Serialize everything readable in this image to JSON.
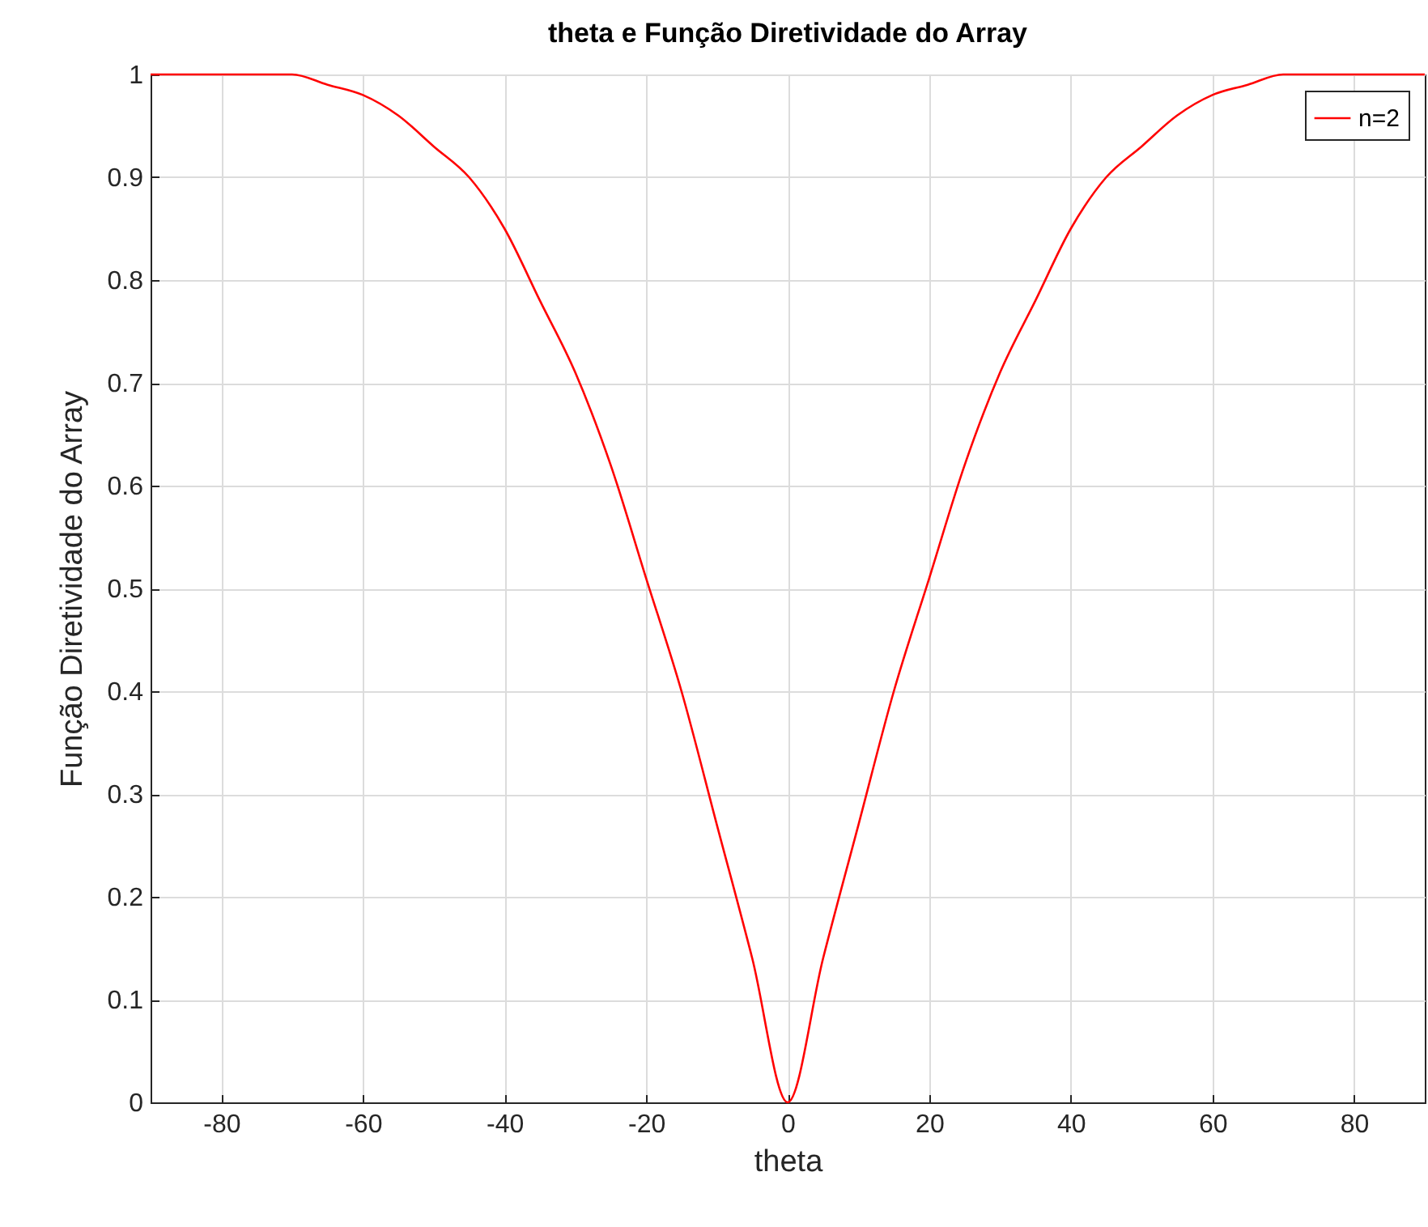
{
  "chart_data": {
    "type": "line",
    "title": "theta e Função Diretividade do Array",
    "xlabel": "theta",
    "ylabel": "Função Diretividade do Array",
    "x": [
      -90,
      -85,
      -80,
      -75,
      -70,
      -65,
      -60,
      -55,
      -50,
      -45,
      -40,
      -35,
      -30,
      -25,
      -20,
      -15,
      -10,
      -5,
      0,
      5,
      10,
      15,
      20,
      25,
      30,
      35,
      40,
      45,
      50,
      55,
      60,
      65,
      70,
      75,
      80,
      85,
      90
    ],
    "series": [
      {
        "name": "n=2",
        "color": "#ff0000",
        "values": [
          1,
          1,
          1,
          1,
          1,
          0.99,
          0.98,
          0.96,
          0.93,
          0.9,
          0.85,
          0.78,
          0.71,
          0.62,
          0.51,
          0.4,
          0.27,
          0.14,
          0,
          0.14,
          0.27,
          0.4,
          0.51,
          0.62,
          0.71,
          0.78,
          0.85,
          0.9,
          0.93,
          0.96,
          0.98,
          0.99,
          1,
          1,
          1,
          1,
          1
        ]
      }
    ],
    "xlim": [
      -90,
      90
    ],
    "ylim": [
      0,
      1
    ],
    "xticks": [
      -80,
      -60,
      -40,
      -20,
      0,
      20,
      40,
      60,
      80
    ],
    "yticks": [
      0,
      0.1,
      0.2,
      0.3,
      0.4,
      0.5,
      0.6,
      0.7,
      0.8,
      0.9,
      1
    ],
    "grid": true,
    "legend": "top right"
  }
}
